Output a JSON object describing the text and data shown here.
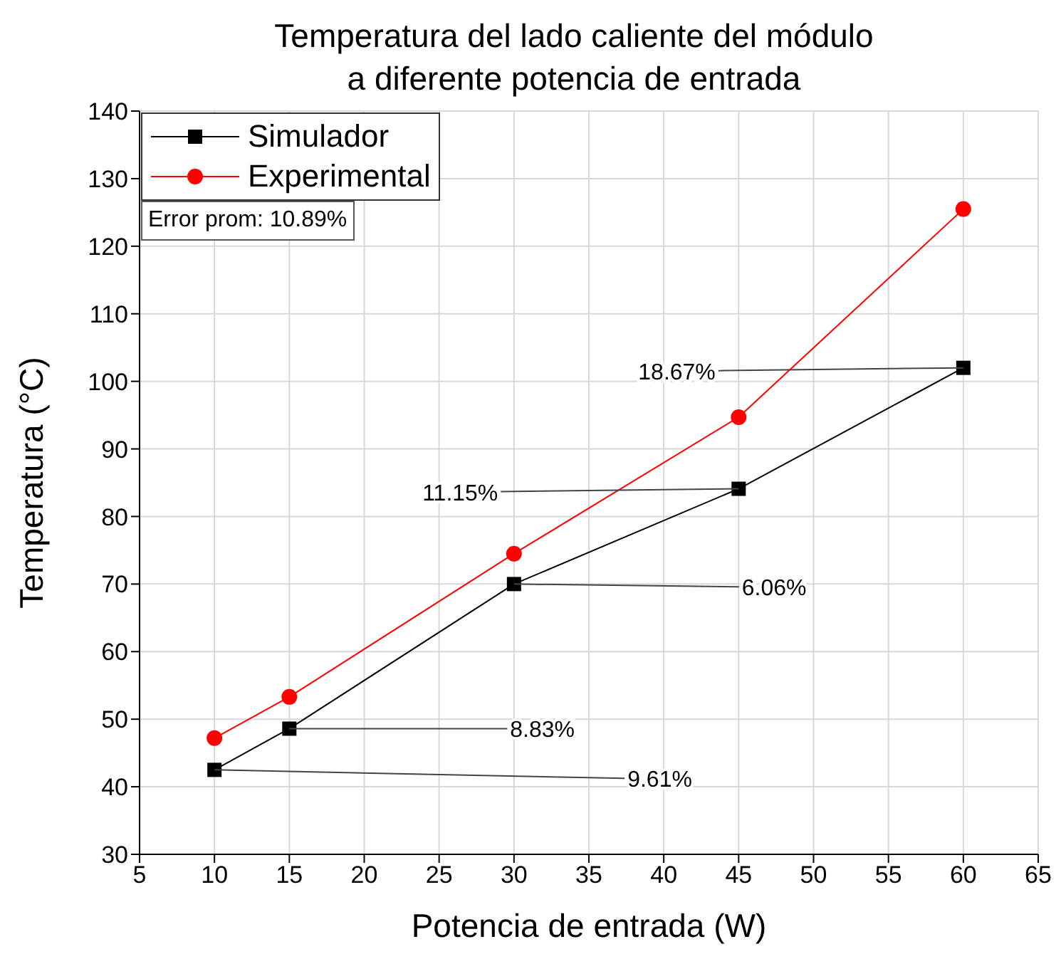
{
  "chart_data": {
    "type": "line",
    "title": "Temperatura del lado caliente del módulo a diferente potencia de entrada",
    "xlabel": "Potencia de entrada (W)",
    "ylabel": "Temperatura (°C)",
    "x": [
      10,
      15,
      30,
      45,
      60
    ],
    "series": [
      {
        "name": "Simulador",
        "color": "#000000",
        "marker": "square",
        "values": [
          42.5,
          48.6,
          70,
          84.1,
          102
        ]
      },
      {
        "name": "Experimental",
        "color": "#ff0000",
        "marker": "circle",
        "values": [
          47.2,
          53.3,
          74.5,
          94.7,
          125.5
        ]
      }
    ],
    "xlim": [
      5,
      65
    ],
    "xticks": [
      5,
      10,
      15,
      20,
      25,
      30,
      35,
      40,
      45,
      50,
      55,
      60,
      65
    ],
    "ylim": [
      30,
      140
    ],
    "yticks": [
      30,
      40,
      50,
      60,
      70,
      80,
      90,
      100,
      110,
      120,
      130,
      140
    ],
    "grid": true,
    "legend": "top left",
    "line_style": "solid",
    "annotations": [
      "Error prom: 10.89%",
      {
        "text": "9.61%",
        "x": 10,
        "y": 42.5
      },
      {
        "text": "8.83%",
        "x": 15,
        "y": 48.6
      },
      {
        "text": "6.06%",
        "x": 30,
        "y": 70
      },
      {
        "text": "11.15%",
        "x": 45,
        "y": 84.1
      },
      {
        "text": "18.67%",
        "x": 60,
        "y": 102
      }
    ]
  }
}
